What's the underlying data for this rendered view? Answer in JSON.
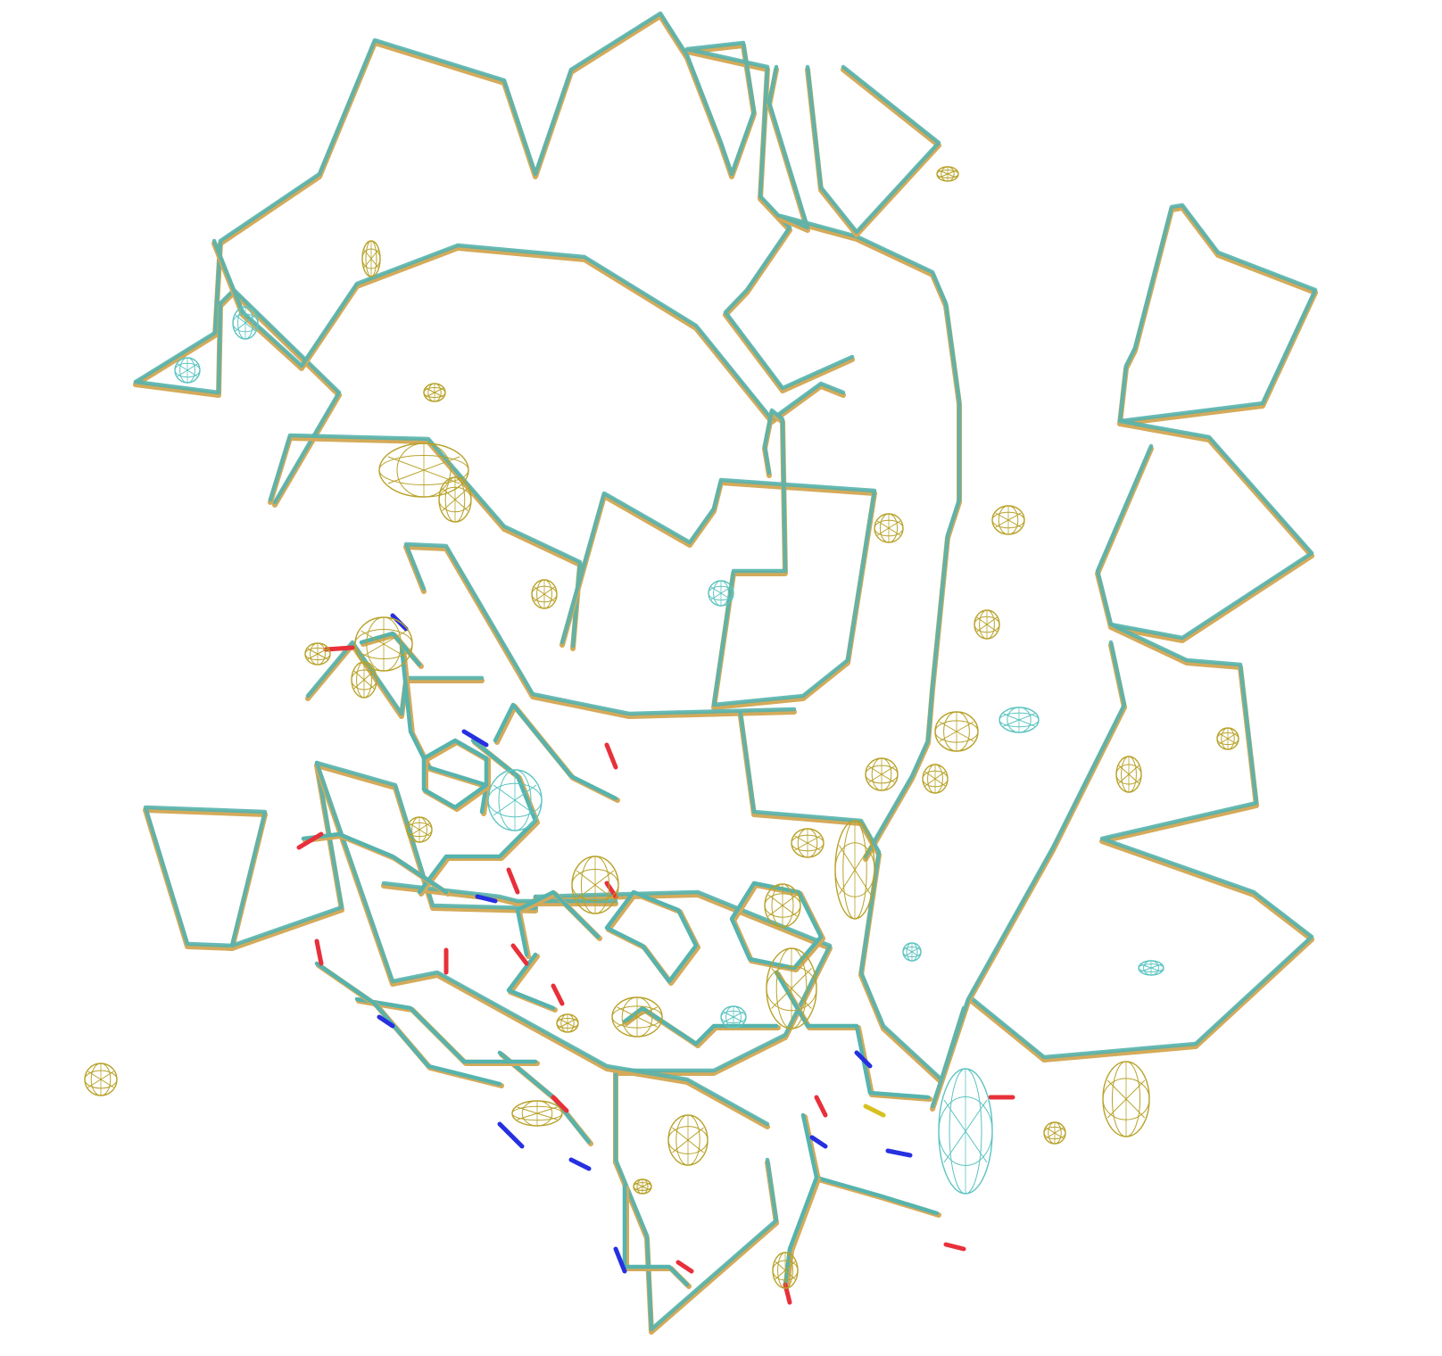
{
  "scene": {
    "background": "#ffffff",
    "colors": {
      "model_a": "#d4aa5a",
      "model_b": "#56b3ad",
      "density_a": "#b8a22a",
      "density_b": "#5bc4c0",
      "oxygen": "#e8303a",
      "nitrogen": "#2630e0",
      "sulfur": "#d8c020"
    },
    "legend": []
  }
}
